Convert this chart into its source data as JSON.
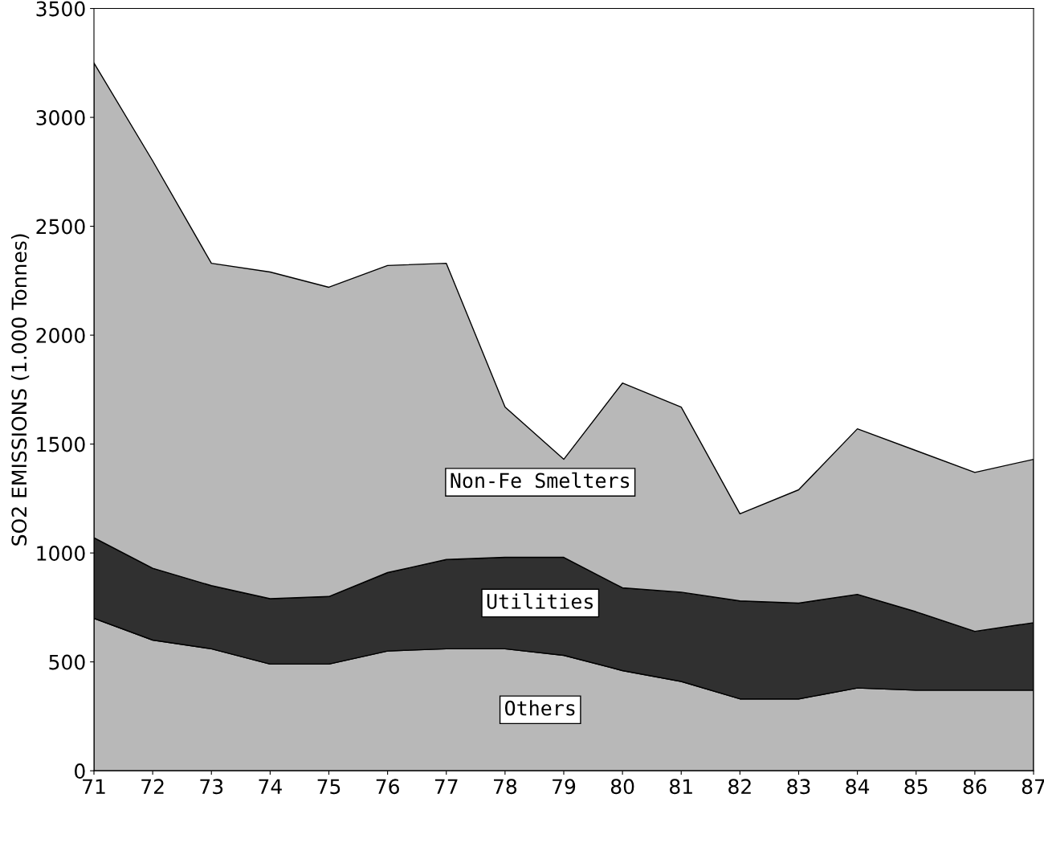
{
  "chart_data": {
    "type": "area",
    "stacked": true,
    "ylabel": "SO2 EMISSIONS (1.000 Tonnes)",
    "x": [
      71,
      72,
      73,
      74,
      75,
      76,
      77,
      78,
      79,
      80,
      81,
      82,
      83,
      84,
      85,
      86,
      87
    ],
    "xlim": [
      71,
      87
    ],
    "xticks": [
      71,
      72,
      73,
      74,
      75,
      76,
      77,
      78,
      79,
      80,
      81,
      82,
      83,
      84,
      85,
      86,
      87
    ],
    "ylim": [
      0,
      3500
    ],
    "yticks": [
      0,
      500,
      1000,
      1500,
      2000,
      2500,
      3000,
      3500
    ],
    "grid": false,
    "legend": false,
    "series": [
      {
        "name": "Others",
        "color": "#b8b8b8",
        "values": [
          700,
          600,
          560,
          490,
          490,
          550,
          560,
          560,
          530,
          460,
          410,
          330,
          330,
          380,
          370,
          370,
          370
        ]
      },
      {
        "name": "Utilities",
        "color": "#303030",
        "values": [
          370,
          330,
          290,
          300,
          310,
          360,
          410,
          420,
          450,
          380,
          410,
          450,
          440,
          430,
          360,
          270,
          310
        ]
      },
      {
        "name": "Non-Fe Smelters",
        "color": "#b8b8b8",
        "values": [
          2180,
          1870,
          1480,
          1500,
          1420,
          1410,
          1360,
          690,
          450,
          940,
          850,
          400,
          520,
          760,
          740,
          730,
          750
        ]
      }
    ]
  }
}
